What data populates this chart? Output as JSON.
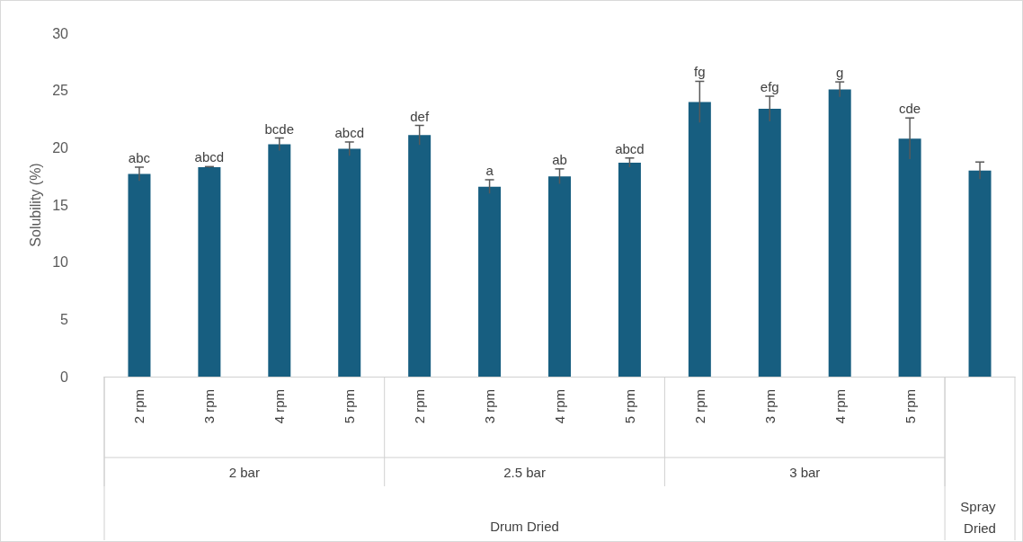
{
  "chart_data": {
    "type": "bar",
    "ylabel": "Solubility (%)",
    "categories": [
      "2 rpm",
      "3 rpm",
      "4 rpm",
      "5 rpm",
      "2 rpm",
      "3 rpm",
      "4 rpm",
      "5 rpm",
      "2 rpm",
      "3 rpm",
      "4 rpm",
      "5 rpm",
      null
    ],
    "values": [
      17.7,
      18.3,
      20.3,
      19.9,
      21.1,
      16.6,
      17.5,
      18.7,
      24.0,
      23.4,
      25.1,
      20.8,
      18.0
    ],
    "errors": [
      0.6,
      0.05,
      0.55,
      0.6,
      0.85,
      0.6,
      0.65,
      0.4,
      1.8,
      1.1,
      0.65,
      1.8,
      0.75
    ],
    "value_labels": [
      "abc",
      "abcd",
      "bcde",
      "abcd",
      "def",
      "a",
      "ab",
      "abcd",
      "fg",
      "efg",
      "g",
      "cde",
      null
    ],
    "color": "#175e80",
    "ylim": [
      0,
      30
    ],
    "yticks": [
      0,
      5,
      10,
      15,
      20,
      25,
      30
    ],
    "annotations": [
      "2 bar",
      "2.5 bar",
      "3 bar",
      "Drum Dried",
      "Spray Dried"
    ]
  }
}
